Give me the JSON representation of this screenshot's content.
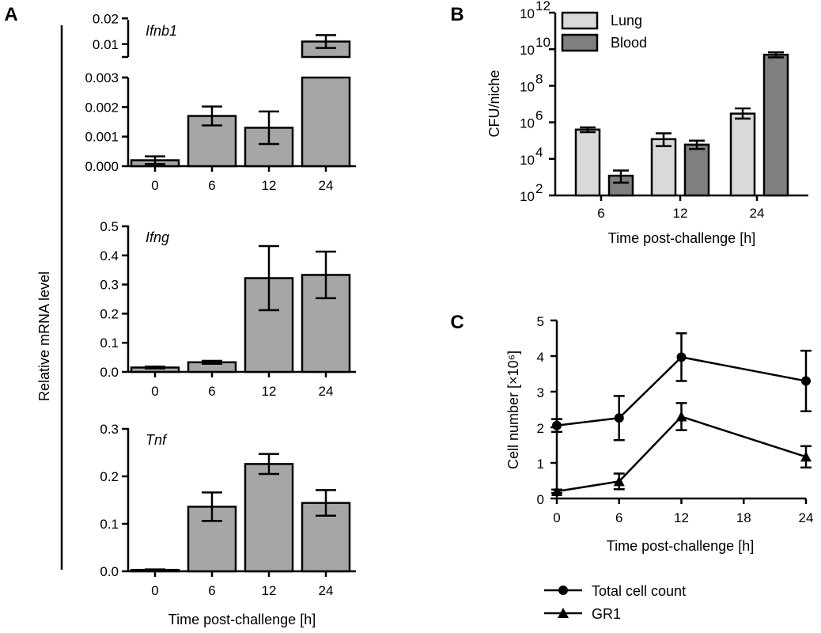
{
  "figure": {
    "panels": [
      "A",
      "B",
      "C"
    ],
    "colors": {
      "bar_a": "#a6a6a6",
      "lung": "#d9d9d9",
      "blood": "#7f7f7f",
      "line": "#000000"
    }
  },
  "chart_data": [
    {
      "panel": "A",
      "type": "bar",
      "title": "Ifnb1",
      "categories": [
        "0",
        "6",
        "12",
        "24"
      ],
      "values": [
        0.0002,
        0.0017,
        0.0013,
        0.011
      ],
      "errors": [
        0.00013,
        0.00032,
        0.00055,
        0.0025
      ],
      "broken_axis": {
        "lower": {
          "ylim": [
            0,
            0.003
          ],
          "yticks": [
            0,
            0.001,
            0.002,
            0.003
          ],
          "tick_labels": [
            "0.000",
            "0.001",
            "0.002",
            "0.003"
          ]
        },
        "upper": {
          "ylim": [
            0.005,
            0.021
          ],
          "yticks": [
            0.01,
            0.02
          ],
          "tick_labels": [
            "0.01",
            "0.02"
          ]
        }
      },
      "ylabel": "Relative mRNA level"
    },
    {
      "panel": "A",
      "type": "bar",
      "title": "Ifng",
      "categories": [
        "0",
        "6",
        "12",
        "24"
      ],
      "values": [
        0.015,
        0.033,
        0.322,
        0.333
      ],
      "errors": [
        0.003,
        0.005,
        0.11,
        0.08
      ],
      "ylim": [
        0,
        0.5
      ],
      "yticks": [
        0,
        0.1,
        0.2,
        0.3,
        0.4,
        0.5
      ],
      "tick_labels": [
        "0.0",
        "0.1",
        "0.2",
        "0.3",
        "0.4",
        "0.5"
      ]
    },
    {
      "panel": "A",
      "type": "bar",
      "title": "Tnf",
      "categories": [
        "0",
        "6",
        "12",
        "24"
      ],
      "values": [
        0.003,
        0.136,
        0.226,
        0.144
      ],
      "errors": [
        0.001,
        0.03,
        0.021,
        0.027
      ],
      "ylim": [
        0,
        0.3
      ],
      "yticks": [
        0,
        0.1,
        0.2,
        0.3
      ],
      "tick_labels": [
        "0.0",
        "0.1",
        "0.2",
        "0.3"
      ],
      "xlabel": "Time post-challenge [h]"
    },
    {
      "panel": "B",
      "type": "bar",
      "scale": "log10",
      "categories": [
        "6",
        "12",
        "24"
      ],
      "series": [
        {
          "name": "Lung",
          "values": [
            400000,
            120000,
            3000000
          ],
          "err_low": [
            290000,
            50000,
            1600000
          ],
          "err_high": [
            530000,
            250000,
            5800000
          ]
        },
        {
          "name": "Blood",
          "values": [
            1200,
            60000,
            5000000000
          ],
          "err_low": [
            500,
            35000,
            3600000000
          ],
          "err_high": [
            2300,
            100000,
            6800000000
          ]
        }
      ],
      "ylim_exp": [
        2,
        12
      ],
      "ytick_exps": [
        2,
        4,
        6,
        8,
        10,
        12
      ],
      "ylabel": "CFU/niche",
      "xlabel": "Time post-challenge [h]",
      "legend": "top-left"
    },
    {
      "panel": "C",
      "type": "line",
      "x": [
        0,
        6,
        12,
        24
      ],
      "series": [
        {
          "name": "Total cell count",
          "marker": "circle",
          "values": [
            2.05,
            2.26,
            3.97,
            3.3
          ],
          "errors": [
            0.18,
            0.62,
            0.67,
            0.85
          ]
        },
        {
          "name": "GR1",
          "marker": "triangle",
          "values": [
            0.2,
            0.48,
            2.3,
            1.17
          ],
          "errors": [
            0.05,
            0.22,
            0.38,
            0.3
          ]
        }
      ],
      "xlim": [
        0,
        24
      ],
      "xticks": [
        0,
        6,
        12,
        18,
        24
      ],
      "ylim": [
        0,
        5
      ],
      "yticks": [
        0,
        1,
        2,
        3,
        4,
        5
      ],
      "ylabel": "Cell number [×10⁶]",
      "xlabel": "Time post-challenge [h]",
      "legend": "bottom"
    }
  ]
}
